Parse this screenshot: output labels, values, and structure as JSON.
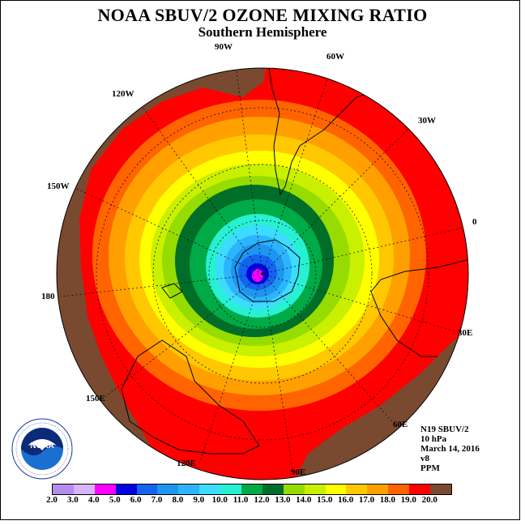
{
  "title": "NOAA SBUV/2 OZONE MIXING RATIO",
  "subtitle": "Southern Hemisphere",
  "longitude_labels": [
    "90W",
    "60W",
    "30W",
    "0",
    "30E",
    "60E",
    "90E",
    "120E",
    "150E",
    "180",
    "150W",
    "120W"
  ],
  "info": {
    "satellite": "N19 SBUV/2",
    "level": "10 hPa",
    "date": "March 14, 2016",
    "version": "v8",
    "units": "PPM"
  },
  "logo": {
    "name": "noaa-logo",
    "text": "NOAA",
    "ring_text": "NATIONAL OCEANIC AND ATMOSPHERIC ADMINISTRATION · U.S. DEPARTMENT OF COMMERCE"
  },
  "colorbar": {
    "ticks": [
      "2.0",
      "3.0",
      "4.0",
      "5.0",
      "6.0",
      "7.0",
      "8.0",
      "9.0",
      "10.0",
      "11.0",
      "12.0",
      "13.0",
      "14.0",
      "15.0",
      "16.0",
      "17.0",
      "18.0",
      "19.0",
      "20.0"
    ],
    "colors": [
      "#b48cf0",
      "#d8b4f8",
      "#ff00ff",
      "#0000e0",
      "#1464f0",
      "#1e96f0",
      "#2db4ff",
      "#3cdcff",
      "#28f0d2",
      "#00aa46",
      "#006e28",
      "#96dc00",
      "#c8f000",
      "#ffff00",
      "#ffc800",
      "#ffa000",
      "#ff6400",
      "#ff0000",
      "#7a4a30"
    ]
  },
  "map_data": {
    "projection": "south polar stereographic",
    "field": "ozone mixing ratio (ppm)",
    "min_center": 4.0,
    "max_outer": 20.0
  }
}
